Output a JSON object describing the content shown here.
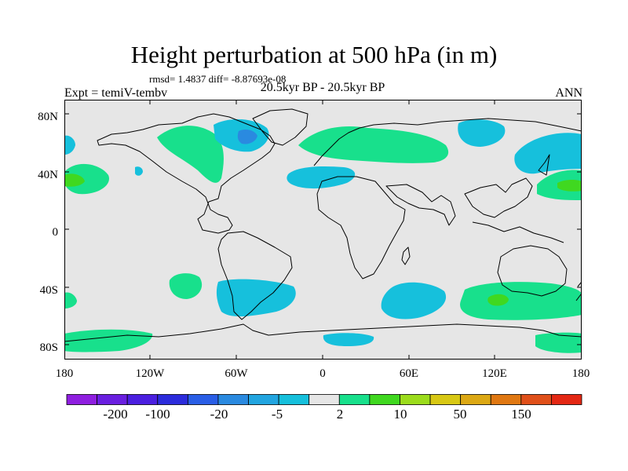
{
  "title": "Height perturbation at 500 hPa (in m)",
  "stats": "rmsd= 1.4837 diff= -8.87693e-08",
  "expt_label": "Expt = temiV-tembv",
  "center_label": "20.5kyr BP - 20.5kyr BP",
  "season": "ANN",
  "lat_ticks": [
    "80N",
    "40N",
    "0",
    "40S",
    "80S"
  ],
  "lon_ticks": [
    "180",
    "120W",
    "60W",
    "0",
    "60E",
    "120E",
    "180"
  ],
  "colorbar": {
    "colors": [
      "#8f1fe0",
      "#6a1fe0",
      "#4b1fe0",
      "#2c2cdc",
      "#2a5ee6",
      "#2a8ae0",
      "#22a5e0",
      "#16c0dc",
      "#e6e6e6",
      "#18e08c",
      "#40d820",
      "#9cdc1c",
      "#d8c814",
      "#dca814",
      "#e07812",
      "#e0501a",
      "#e42814"
    ],
    "labels": [
      "-200",
      "-100",
      "-20",
      "-5",
      "2",
      "10",
      "50",
      "150"
    ]
  }
}
